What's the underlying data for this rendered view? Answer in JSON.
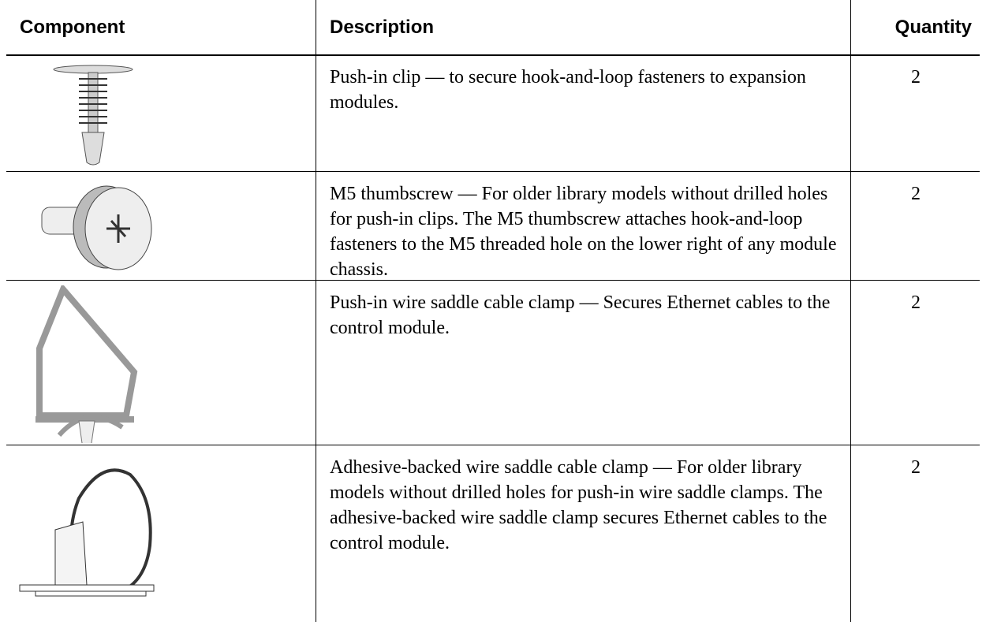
{
  "table": {
    "header": [
      "Component",
      "Description",
      "Quantity"
    ],
    "rows": [
      {
        "description": "Push-in clip — to secure hook-and-loop fasteners to expansion modules.",
        "quantity": 2
      },
      {
        "description": "M5 thumbscrew — For older library models without drilled holes for push-in clips. The M5 thumbscrew attaches hook-and-loop fasteners to the M5 threaded hole on the lower right of any module chassis.",
        "quantity": 2
      },
      {
        "description": "Push-in wire saddle cable clamp — Secures Ethernet cables to the control module.",
        "quantity": 2
      },
      {
        "description": "Adhesive-backed wire saddle cable clamp — For older library models without drilled holes for push-in wire saddle clamps. The adhesive-backed wire saddle clamp secures Ethernet cables to the control module.",
        "quantity": 2
      }
    ]
  }
}
